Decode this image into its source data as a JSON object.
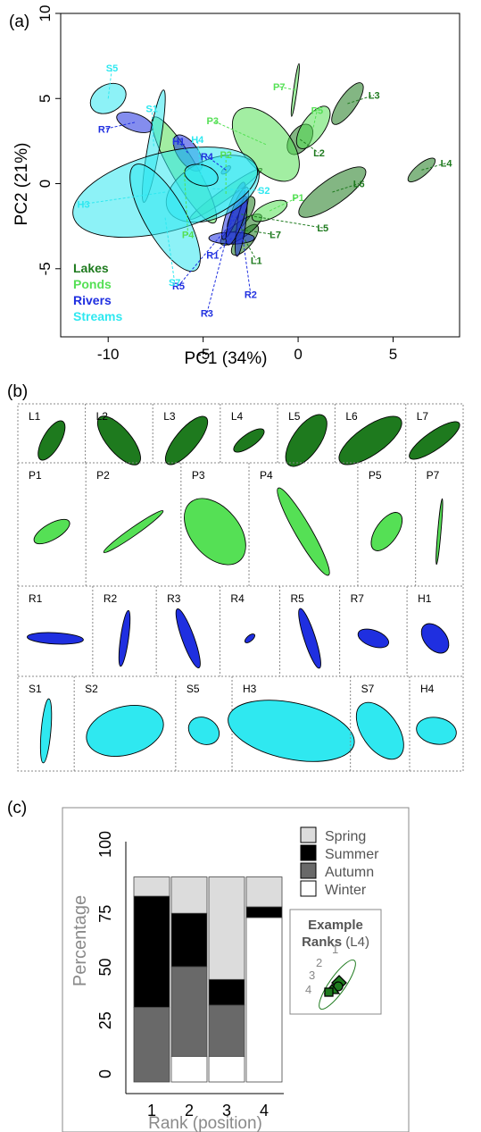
{
  "panel_labels": {
    "a": "(a)",
    "b": "(b)",
    "c": "(c)"
  },
  "colors": {
    "Lakes": "#1e7a1e",
    "Ponds": "#55e055",
    "Rivers": "#1f2fe0",
    "Streams": "#2fe8f0"
  },
  "chart_data": [
    {
      "type": "scatter",
      "panel": "(a)",
      "xlabel": "PC1 (34%)",
      "ylabel": "PC2 (21%)",
      "xlim": [
        -12.5,
        8.5
      ],
      "ylim": [
        -9,
        10
      ],
      "xticks": [
        -10,
        -5,
        0,
        5
      ],
      "yticks": [
        -5,
        0,
        5,
        10
      ],
      "legend": [
        {
          "label": "Lakes",
          "group": "Lakes"
        },
        {
          "label": "Ponds",
          "group": "Ponds"
        },
        {
          "label": "Rivers",
          "group": "Rivers"
        },
        {
          "label": "Streams",
          "group": "Streams"
        }
      ],
      "legend_position": "bottom-left",
      "ellipses": [
        {
          "id": "L1",
          "group": "Lakes",
          "cx": -2.8,
          "cy": -3.3,
          "rx": 1.0,
          "ry": 0.45,
          "angle": 50,
          "label_x": -2.2,
          "label_y": -4.5
        },
        {
          "id": "L2",
          "group": "Lakes",
          "cx": 0.1,
          "cy": 2.6,
          "rx": 0.9,
          "ry": 0.6,
          "angle": 55,
          "label_x": 1.1,
          "label_y": 1.8
        },
        {
          "id": "L3",
          "group": "Lakes",
          "cx": 2.6,
          "cy": 4.7,
          "rx": 1.3,
          "ry": 0.5,
          "angle": 55,
          "label_x": 4.0,
          "label_y": 5.2
        },
        {
          "id": "L4",
          "group": "Lakes",
          "cx": 6.5,
          "cy": 0.8,
          "rx": 0.9,
          "ry": 0.35,
          "angle": 40,
          "label_x": 7.8,
          "label_y": 1.2
        },
        {
          "id": "L5",
          "group": "Lakes",
          "cx": -3.0,
          "cy": -1.8,
          "rx": 1.1,
          "ry": 0.5,
          "angle": 55,
          "label_x": 1.3,
          "label_y": -2.6
        },
        {
          "id": "L6",
          "group": "Lakes",
          "cx": 1.8,
          "cy": -0.5,
          "rx": 2.1,
          "ry": 0.75,
          "angle": 35,
          "label_x": 3.2,
          "label_y": 0.0
        },
        {
          "id": "L7",
          "group": "Lakes",
          "cx": -3.0,
          "cy": -2.7,
          "rx": 1.3,
          "ry": 0.45,
          "angle": 35,
          "label_x": -1.2,
          "label_y": -3.0
        },
        {
          "id": "P1",
          "group": "Ponds",
          "cx": -1.5,
          "cy": -1.6,
          "rx": 1.0,
          "ry": 0.45,
          "angle": 25,
          "label_x": 0.0,
          "label_y": -0.8
        },
        {
          "id": "P2",
          "group": "Ponds",
          "cx": -3.8,
          "cy": -0.6,
          "rx": 2.3,
          "ry": 0.3,
          "angle": 35,
          "label_x": -3.8,
          "label_y": 1.7
        },
        {
          "id": "P3",
          "group": "Ponds",
          "cx": -1.7,
          "cy": 2.3,
          "rx": 2.3,
          "ry": 1.4,
          "angle": -50,
          "label_x": -4.5,
          "label_y": 3.7
        },
        {
          "id": "P4",
          "group": "Ponds",
          "cx": -6.0,
          "cy": 0.8,
          "rx": 3.2,
          "ry": 0.75,
          "angle": -60,
          "label_x": -5.8,
          "label_y": -3.0
        },
        {
          "id": "P5",
          "group": "Ponds",
          "cx": 0.8,
          "cy": 3.3,
          "rx": 1.3,
          "ry": 0.65,
          "angle": 55,
          "label_x": 1.0,
          "label_y": 4.3
        },
        {
          "id": "P7",
          "group": "Ponds",
          "cx": -0.15,
          "cy": 5.5,
          "rx": 1.4,
          "ry": 0.1,
          "angle": 82,
          "label_x": -1.0,
          "label_y": 5.7
        },
        {
          "id": "R1",
          "group": "Rivers",
          "cx": -3.5,
          "cy": -3.2,
          "rx": 1.2,
          "ry": 0.35,
          "angle": 0,
          "label_x": -4.5,
          "label_y": -4.2
        },
        {
          "id": "R2",
          "group": "Rivers",
          "cx": -3.0,
          "cy": -2.5,
          "rx": 1.6,
          "ry": 0.25,
          "angle": 82,
          "label_x": -2.5,
          "label_y": -6.5
        },
        {
          "id": "R3",
          "group": "Rivers",
          "cx": -3.4,
          "cy": -1.6,
          "rx": 1.6,
          "ry": 0.35,
          "angle": 70,
          "label_x": -4.8,
          "label_y": -7.6
        },
        {
          "id": "R4",
          "group": "Rivers",
          "cx": -3.8,
          "cy": 0.8,
          "rx": 0.3,
          "ry": 0.15,
          "angle": 40,
          "label_x": -4.8,
          "label_y": 1.6
        },
        {
          "id": "R5",
          "group": "Rivers",
          "cx": -3.2,
          "cy": -1.9,
          "rx": 1.6,
          "ry": 0.4,
          "angle": 72,
          "label_x": -6.3,
          "label_y": -6.0
        },
        {
          "id": "R7",
          "group": "Rivers",
          "cx": -8.6,
          "cy": 3.6,
          "rx": 1.0,
          "ry": 0.5,
          "angle": -20,
          "label_x": -10.2,
          "label_y": 3.2
        },
        {
          "id": "H1",
          "group": "Rivers",
          "cx": -5.8,
          "cy": 1.8,
          "rx": 1.1,
          "ry": 0.6,
          "angle": -55,
          "label_x": -6.3,
          "label_y": 2.5
        },
        {
          "id": "S1",
          "group": "Streams",
          "cx": -7.6,
          "cy": 2.2,
          "rx": 3.0,
          "ry": 0.35,
          "angle": 80,
          "label_x": -7.7,
          "label_y": 4.4
        },
        {
          "id": "S2",
          "group": "Streams",
          "cx": -4.5,
          "cy": -0.3,
          "rx": 2.6,
          "ry": 1.7,
          "angle": 25,
          "label_x": -1.8,
          "label_y": -0.4
        },
        {
          "id": "S5",
          "group": "Streams",
          "cx": -10.0,
          "cy": 5.0,
          "rx": 1.0,
          "ry": 0.8,
          "angle": 30,
          "label_x": -9.8,
          "label_y": 6.8
        },
        {
          "id": "H3",
          "group": "Streams",
          "cx": -7.0,
          "cy": -0.5,
          "rx": 5.0,
          "ry": 2.3,
          "angle": 15,
          "label_x": -11.3,
          "label_y": -1.2
        },
        {
          "id": "S7",
          "group": "Streams",
          "cx": -7.0,
          "cy": -2.0,
          "rx": 3.2,
          "ry": 1.2,
          "angle": -60,
          "label_x": -6.5,
          "label_y": -5.8
        },
        {
          "id": "H4",
          "group": "Streams",
          "cx": -5.1,
          "cy": 0.5,
          "rx": 0.9,
          "ry": 0.6,
          "angle": -15,
          "label_x": -5.3,
          "label_y": 2.6
        }
      ]
    },
    {
      "type": "table",
      "panel": "(b)",
      "rows": [
        [
          {
            "id": "L1",
            "group": "Lakes",
            "angle": -60,
            "rx": 0.55,
            "ry": 0.22
          },
          {
            "id": "L2",
            "group": "Lakes",
            "angle": 50,
            "rx": 0.75,
            "ry": 0.3
          },
          {
            "id": "L3",
            "group": "Lakes",
            "angle": -50,
            "rx": 0.75,
            "ry": 0.27
          },
          {
            "id": "L4",
            "group": "Lakes",
            "angle": -35,
            "rx": 0.45,
            "ry": 0.16
          },
          {
            "id": "L5",
            "group": "Lakes",
            "angle": -55,
            "rx": 0.75,
            "ry": 0.34
          },
          {
            "id": "L6",
            "group": "Lakes",
            "angle": -35,
            "rx": 0.92,
            "ry": 0.35
          },
          {
            "id": "L7",
            "group": "Lakes",
            "angle": -35,
            "rx": 0.75,
            "ry": 0.22
          }
        ],
        [
          {
            "id": "P1",
            "group": "Ponds",
            "angle": -30,
            "rx": 0.5,
            "ry": 0.2
          },
          {
            "id": "P2",
            "group": "Ponds",
            "angle": -35,
            "rx": 0.9,
            "ry": 0.1
          },
          {
            "id": "P3",
            "group": "Ponds",
            "angle": 50,
            "rx": 0.95,
            "ry": 0.6
          },
          {
            "id": "P4",
            "group": "Ponds",
            "angle": 60,
            "rx": 1.25,
            "ry": 0.2
          },
          {
            "id": "P5",
            "group": "Ponds",
            "angle": -55,
            "rx": 0.55,
            "ry": 0.27
          },
          {
            "id": "P7",
            "group": "Ponds",
            "angle": -85,
            "rx": 0.82,
            "ry": 0.04
          }
        ],
        [
          {
            "id": "R1",
            "group": "Rivers",
            "angle": 3,
            "rx": 0.7,
            "ry": 0.14
          },
          {
            "id": "R2",
            "group": "Rivers",
            "angle": -82,
            "rx": 0.7,
            "ry": 0.1
          },
          {
            "id": "R3",
            "group": "Rivers",
            "angle": 70,
            "rx": 0.78,
            "ry": 0.15
          },
          {
            "id": "R4",
            "group": "Rivers",
            "angle": -40,
            "rx": 0.15,
            "ry": 0.07
          },
          {
            "id": "R5",
            "group": "Rivers",
            "angle": 72,
            "rx": 0.78,
            "ry": 0.14
          },
          {
            "id": "R7",
            "group": "Rivers",
            "angle": 20,
            "rx": 0.4,
            "ry": 0.2
          },
          {
            "id": "H1",
            "group": "Rivers",
            "angle": 50,
            "rx": 0.42,
            "ry": 0.27
          }
        ],
        [
          {
            "id": "S1",
            "group": "Streams",
            "angle": -85,
            "rx": 0.8,
            "ry": 0.12
          },
          {
            "id": "S2",
            "group": "Streams",
            "angle": -15,
            "rx": 0.98,
            "ry": 0.6
          },
          {
            "id": "S5",
            "group": "Streams",
            "angle": 30,
            "rx": 0.4,
            "ry": 0.32
          },
          {
            "id": "H3",
            "group": "Streams",
            "angle": 12,
            "rx": 1.6,
            "ry": 0.7
          },
          {
            "id": "S7",
            "group": "Streams",
            "angle": 55,
            "rx": 0.8,
            "ry": 0.45
          },
          {
            "id": "H4",
            "group": "Streams",
            "angle": 10,
            "rx": 0.5,
            "ry": 0.33
          }
        ]
      ]
    },
    {
      "type": "bar",
      "stacked": true,
      "panel": "(c)",
      "xlabel": "Rank (position)",
      "ylabel": "Percentage",
      "categories": [
        "1",
        "2",
        "3",
        "4"
      ],
      "ylim": [
        0,
        100
      ],
      "yticks": [
        0,
        25,
        50,
        75,
        100
      ],
      "series": [
        {
          "name": "Winter",
          "color": "#ffffff",
          "values": [
            0,
            12,
            12,
            77
          ]
        },
        {
          "name": "Autumn",
          "color": "#696969",
          "values": [
            35,
            42,
            24,
            0
          ]
        },
        {
          "name": "Summer",
          "color": "#000000",
          "values": [
            52,
            25,
            12,
            5
          ]
        },
        {
          "name": "Spring",
          "color": "#dcdcdc",
          "values": [
            9,
            17,
            48,
            14
          ]
        }
      ],
      "legend": [
        "Spring",
        "Summer",
        "Autumn",
        "Winter"
      ],
      "legend_position": "top-right",
      "inset": {
        "title_bold": "Example",
        "title_line2_bold": "Ranks",
        "title_line2_rest": " (L4)",
        "ranks": [
          "1",
          "2",
          "3",
          "4"
        ]
      }
    }
  ]
}
